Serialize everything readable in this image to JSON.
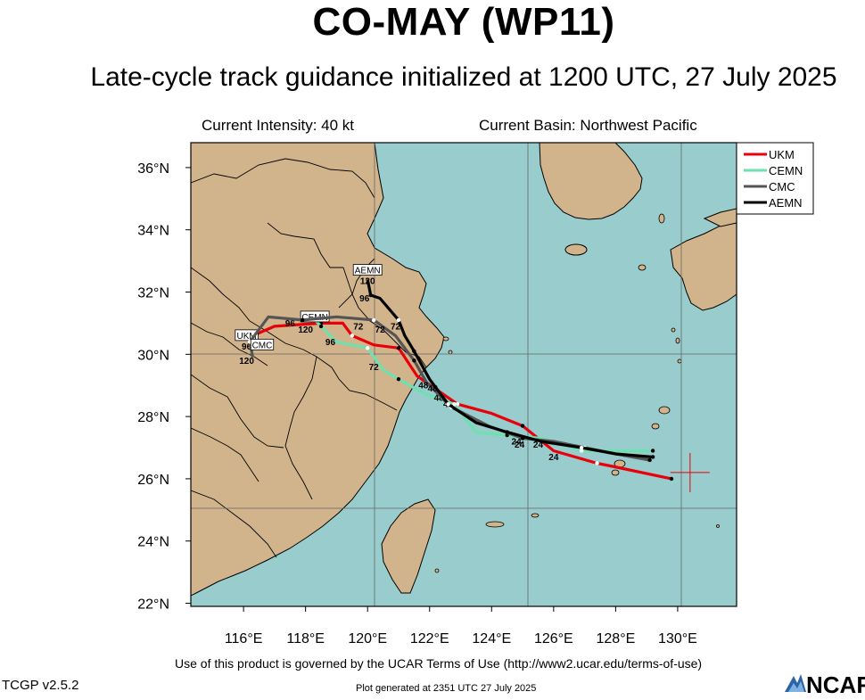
{
  "header": {
    "title": "CO-MAY (WP11)",
    "subtitle": "Late-cycle track guidance initialized at 1200 UTC, 27 July 2025"
  },
  "info": {
    "intensity": "Current Intensity: 40 kt",
    "basin": "Current Basin: Northwest Pacific"
  },
  "axes": {
    "lon_ticks": [
      "116°E",
      "118°E",
      "120°E",
      "122°E",
      "124°E",
      "126°E",
      "128°E",
      "130°E"
    ],
    "lat_ticks": [
      "22°N",
      "24°N",
      "26°N",
      "28°N",
      "30°N",
      "32°N",
      "34°N",
      "36°N"
    ]
  },
  "legend": [
    {
      "name": "UKM",
      "color": "#e8000b"
    },
    {
      "name": "CEMN",
      "color": "#6fe0b0"
    },
    {
      "name": "CMC",
      "color": "#555555"
    },
    {
      "name": "AEMN",
      "color": "#000000"
    }
  ],
  "colors": {
    "ocean": "#99cccc",
    "land": "#d2b48c",
    "border": "#000000",
    "current_position": "#e8000b"
  },
  "current_position": {
    "lon": 130.4,
    "lat": 26.2
  },
  "tracks": [
    {
      "name": "UKM",
      "color": "#e8000b",
      "points": [
        [
          129.8,
          26.0
        ],
        [
          127.9,
          26.4
        ],
        [
          127.4,
          26.5
        ],
        [
          126.0,
          26.9
        ],
        [
          125.0,
          27.7
        ],
        [
          124.0,
          28.1
        ],
        [
          122.9,
          28.4
        ],
        [
          121.6,
          29.3
        ],
        [
          121.0,
          30.2
        ],
        [
          120.2,
          30.3
        ],
        [
          119.5,
          30.6
        ],
        [
          119.2,
          31.0
        ],
        [
          118.5,
          31.0
        ],
        [
          117.0,
          30.9
        ],
        [
          116.3,
          30.6
        ],
        [
          116.5,
          30.2
        ]
      ],
      "labels": [
        {
          "t": "24",
          "lon": 126.0,
          "lat": 26.6
        },
        {
          "t": "48",
          "lon": 122.6,
          "lat": 28.3
        },
        {
          "t": "72",
          "lon": 119.7,
          "lat": 30.8
        },
        {
          "t": "96",
          "lon": 117.5,
          "lat": 30.9
        }
      ],
      "endlabel": {
        "t": "UKM",
        "lon": 116.1,
        "lat": 30.5,
        "hr": "96"
      }
    },
    {
      "name": "CEMN",
      "color": "#6fe0b0",
      "points": [
        [
          129.2,
          26.9
        ],
        [
          128.0,
          26.9
        ],
        [
          126.9,
          26.9
        ],
        [
          125.6,
          27.3
        ],
        [
          124.5,
          27.4
        ],
        [
          123.5,
          27.5
        ],
        [
          122.8,
          28.4
        ],
        [
          121.9,
          28.7
        ],
        [
          121.0,
          29.2
        ],
        [
          120.5,
          29.5
        ],
        [
          120.0,
          30.2
        ],
        [
          119.0,
          30.4
        ],
        [
          118.5,
          30.9
        ],
        [
          118.2,
          31.2
        ]
      ],
      "labels": [
        {
          "t": "24",
          "lon": 124.8,
          "lat": 27.1
        },
        {
          "t": "48",
          "lon": 122.3,
          "lat": 28.5
        },
        {
          "t": "72",
          "lon": 120.2,
          "lat": 29.5
        },
        {
          "t": "120",
          "lon": 118.0,
          "lat": 30.7
        }
      ],
      "endlabel": {
        "t": "CEMN",
        "lon": 118.3,
        "lat": 31.1
      }
    },
    {
      "name": "CMC",
      "color": "#555555",
      "points": [
        [
          129.1,
          26.6
        ],
        [
          128.0,
          26.8
        ],
        [
          127.0,
          27.0
        ],
        [
          126.0,
          27.2
        ],
        [
          125.0,
          27.3
        ],
        [
          123.9,
          27.7
        ],
        [
          122.7,
          28.3
        ],
        [
          121.9,
          29.1
        ],
        [
          121.5,
          29.8
        ],
        [
          120.9,
          30.6
        ],
        [
          120.2,
          31.1
        ],
        [
          119.0,
          31.2
        ],
        [
          117.9,
          31.1
        ],
        [
          116.8,
          31.2
        ],
        [
          116.2,
          30.4
        ],
        [
          116.3,
          29.9
        ]
      ],
      "labels": [
        {
          "t": "24",
          "lon": 125.5,
          "lat": 27.0
        },
        {
          "t": "48",
          "lon": 122.1,
          "lat": 28.8
        },
        {
          "t": "72",
          "lon": 120.4,
          "lat": 30.7
        },
        {
          "t": "96",
          "lon": 118.8,
          "lat": 30.3
        },
        {
          "t": "120",
          "lon": 116.1,
          "lat": 29.7
        }
      ],
      "endlabel": {
        "t": "CMC",
        "lon": 116.6,
        "lat": 30.2
      }
    },
    {
      "name": "AEMN",
      "color": "#000000",
      "points": [
        [
          129.2,
          26.7
        ],
        [
          128.0,
          26.8
        ],
        [
          126.9,
          27.0
        ],
        [
          125.6,
          27.2
        ],
        [
          124.5,
          27.5
        ],
        [
          123.5,
          27.8
        ],
        [
          122.6,
          28.4
        ],
        [
          122.0,
          29.2
        ],
        [
          121.5,
          30.1
        ],
        [
          121.2,
          30.6
        ],
        [
          121.0,
          31.1
        ],
        [
          120.4,
          31.8
        ],
        [
          120.1,
          31.9
        ],
        [
          120.0,
          32.4
        ]
      ],
      "labels": [
        {
          "t": "24",
          "lon": 124.9,
          "lat": 27.0
        },
        {
          "t": "48",
          "lon": 121.8,
          "lat": 28.9
        },
        {
          "t": "72",
          "lon": 120.9,
          "lat": 30.8
        },
        {
          "t": "96",
          "lon": 119.9,
          "lat": 31.7
        }
      ],
      "endlabel": {
        "t": "AEMN",
        "lon": 120.0,
        "lat": 32.6,
        "hr": "120"
      }
    }
  ],
  "footer": {
    "terms": "Use of this product is governed by the UCAR Terms of Use (http://www2.ucar.edu/terms-of-use)",
    "version": "TCGP v2.5.2",
    "generated": "Plot generated at 2351 UTC  27 July 2025",
    "logo": "NCAR"
  }
}
